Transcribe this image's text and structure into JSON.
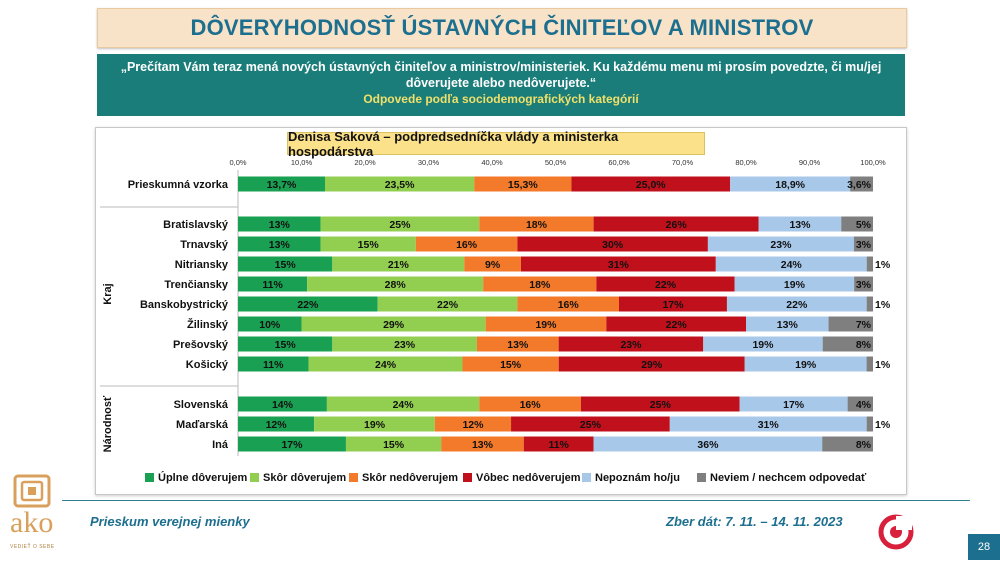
{
  "header": {
    "title": "DÔVERYHODNOSŤ ÚSTAVNÝCH ČINITEĽOV A MINISTROV",
    "question_line1": "„Prečítam Vám teraz mená nových ústavných činiteľov a ministrov/ministeriek. Ku každému menu mi prosím povedzte, či mu/jej",
    "question_line2": "dôverujete alebo nedôverujete.“",
    "subtitle": "Odpovede podľa sociodemografických kategórií"
  },
  "footer": {
    "left": "Prieskum verejnej mienky",
    "right": "Zber dát: 7. 11. – 14. 11. 2023",
    "page": "28",
    "logo_text": "ako",
    "logo_tagline": "VEDIEŤ O SEBE"
  },
  "colors": {
    "Úplne dôverujem": "#1aa052",
    "Skôr dôverujem": "#92cf50",
    "Skôr nedôverujem": "#f37a2a",
    "Vôbec nedôverujem": "#c0101c",
    "Nepoznám ho/ju": "#a8c8ea",
    "Neviem / nechcem odpovedať": "#7f7f7f",
    "title": "#1d6f8f",
    "teal": "#1a7d7a"
  },
  "chart_data": {
    "type": "bar",
    "orientation": "horizontal-stacked-100",
    "title": "Denisa Saková – podpredsedníčka vlády a ministerka hospodárstva",
    "x_ticks": [
      "0,0%",
      "10,0%",
      "20,0%",
      "30,0%",
      "40,0%",
      "50,0%",
      "60,0%",
      "70,0%",
      "80,0%",
      "90,0%",
      "100,0%"
    ],
    "xlim": [
      0,
      100
    ],
    "legend_position": "bottom",
    "series_names": [
      "Úplne dôverujem",
      "Skôr dôverujem",
      "Skôr nedôverujem",
      "Vôbec nedôverujem",
      "Nepoznám ho/ju",
      "Neviem / nechcem odpovedať"
    ],
    "groups": [
      {
        "name": "",
        "rows": [
          {
            "label": "Prieskumná vzorka",
            "values": [
              13.7,
              23.5,
              15.3,
              25.0,
              18.9,
              3.6
            ],
            "labels": [
              "13,7%",
              "23,5%",
              "15,3%",
              "25,0%",
              "18,9%",
              "3,6%"
            ]
          }
        ]
      },
      {
        "name": "Kraj",
        "rows": [
          {
            "label": "Bratislavský",
            "values": [
              13,
              25,
              18,
              26,
              13,
              5
            ],
            "labels": [
              "13%",
              "25%",
              "18%",
              "26%",
              "13%",
              "5%"
            ]
          },
          {
            "label": "Trnavský",
            "values": [
              13,
              15,
              16,
              30,
              23,
              3
            ],
            "labels": [
              "13%",
              "15%",
              "16%",
              "30%",
              "23%",
              "3%"
            ]
          },
          {
            "label": "Nitriansky",
            "values": [
              15,
              21,
              9,
              31,
              24,
              1
            ],
            "labels": [
              "15%",
              "21%",
              "9%",
              "31%",
              "24%",
              "1%"
            ]
          },
          {
            "label": "Trenčiansky",
            "values": [
              11,
              28,
              18,
              22,
              19,
              3
            ],
            "labels": [
              "11%",
              "28%",
              "18%",
              "22%",
              "19%",
              "3%"
            ]
          },
          {
            "label": "Banskobystrický",
            "values": [
              22,
              22,
              16,
              17,
              22,
              1
            ],
            "labels": [
              "22%",
              "22%",
              "16%",
              "17%",
              "22%",
              "1%"
            ]
          },
          {
            "label": "Žilinský",
            "values": [
              10,
              29,
              19,
              22,
              13,
              7
            ],
            "labels": [
              "10%",
              "29%",
              "19%",
              "22%",
              "13%",
              "7%"
            ]
          },
          {
            "label": "Prešovský",
            "values": [
              15,
              23,
              13,
              23,
              19,
              8
            ],
            "labels": [
              "15%",
              "23%",
              "13%",
              "23%",
              "19%",
              "8%"
            ]
          },
          {
            "label": "Košický",
            "values": [
              11,
              24,
              15,
              29,
              19,
              1
            ],
            "labels": [
              "11%",
              "24%",
              "15%",
              "29%",
              "19%",
              "1%"
            ]
          }
        ]
      },
      {
        "name": "Národnosť",
        "rows": [
          {
            "label": "Slovenská",
            "values": [
              14,
              24,
              16,
              25,
              17,
              4
            ],
            "labels": [
              "14%",
              "24%",
              "16%",
              "25%",
              "17%",
              "4%"
            ]
          },
          {
            "label": "Maďarská",
            "values": [
              12,
              19,
              12,
              25,
              31,
              1
            ],
            "labels": [
              "12%",
              "19%",
              "12%",
              "25%",
              "31%",
              "1%"
            ]
          },
          {
            "label": "Iná",
            "values": [
              17,
              15,
              13,
              11,
              36,
              8
            ],
            "labels": [
              "17%",
              "15%",
              "13%",
              "11%",
              "36%",
              "8%"
            ]
          }
        ]
      }
    ]
  }
}
